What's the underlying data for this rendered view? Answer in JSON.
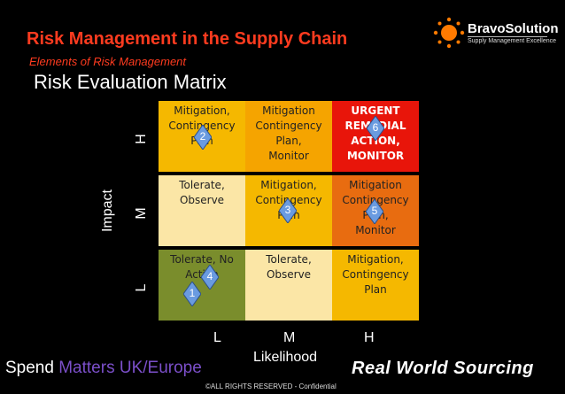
{
  "header": {
    "title": "Risk Management in the Supply Chain",
    "subtitle": "Elements of Risk Management",
    "matrix_title": "Risk Evaluation Matrix"
  },
  "logo": {
    "name": "BravoSolution",
    "tagline": "Supply Management Excellence"
  },
  "axes": {
    "y_title": "Impact",
    "y_levels": [
      "H",
      "M",
      "L"
    ],
    "x_title": "Likelihood",
    "x_levels": [
      "L",
      "M",
      "H"
    ]
  },
  "matrix": {
    "rows": [
      [
        {
          "lines": [
            "Mitigation,",
            "Contingency",
            "Plan"
          ],
          "color": "#f5b800"
        },
        {
          "lines": [
            "Mitigation",
            "Contingency",
            "Plan,",
            "Monitor"
          ],
          "color": "#f5a400"
        },
        {
          "lines": [
            "URGENT",
            "REMEDIAL",
            "ACTION,",
            "MONITOR"
          ],
          "color": "#e8150a"
        }
      ],
      [
        {
          "lines": [
            "Tolerate,",
            "Observe"
          ],
          "color": "#fbe6a6"
        },
        {
          "lines": [
            "Mitigation,",
            "Contingency",
            "Plan"
          ],
          "color": "#f5b800"
        },
        {
          "lines": [
            "Mitigation",
            "Contingency",
            "Plan,",
            "Monitor"
          ],
          "color": "#e86c10"
        }
      ],
      [
        {
          "lines": [
            "Tolerate, No",
            "Action"
          ],
          "color": "#7a8d2c"
        },
        {
          "lines": [
            "Tolerate,",
            "Observe"
          ],
          "color": "#fbe6a6"
        },
        {
          "lines": [
            "Mitigation,",
            "Contingency",
            "Plan"
          ],
          "color": "#f5b800"
        }
      ]
    ]
  },
  "markers": [
    {
      "label": "1"
    },
    {
      "label": "2"
    },
    {
      "label": "3"
    },
    {
      "label": "4"
    },
    {
      "label": "5"
    },
    {
      "label": "6"
    }
  ],
  "footer": {
    "spend_prefix": "Spend ",
    "spend_highlight": "Matters UK/Europe",
    "brand": "Real World Sourcing",
    "copyright": "©ALL RIGHTS RESERVED - Confidential"
  },
  "colors": {
    "title": "#ff3b1f",
    "marker": "#6a9be0",
    "highlight": "#7b4fc9"
  }
}
